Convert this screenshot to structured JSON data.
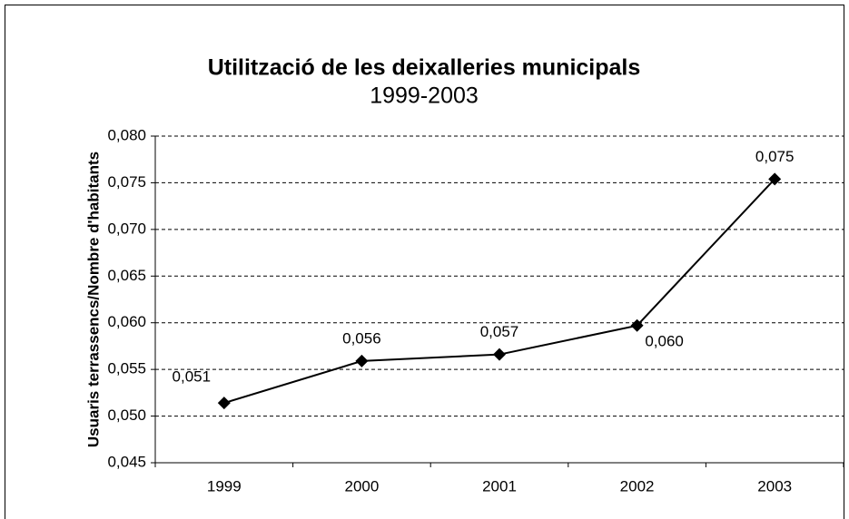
{
  "chart_data": {
    "type": "line",
    "title": "Utilització de les deixalleries municipals",
    "subtitle": "1999-2003",
    "y_label": "Usuaris terrassencs/Nombre d'habitants",
    "categories": [
      "1999",
      "2000",
      "2001",
      "2002",
      "2003"
    ],
    "series": [
      {
        "name": "Usuaris terrassencs/Nombre d'habitants",
        "color": "#000000",
        "values": [
          0.0514,
          0.0559,
          0.0566,
          0.0597,
          0.0754
        ],
        "value_labels": [
          "0,051",
          "0,056",
          "0,057",
          "0,060",
          "0,075"
        ]
      }
    ],
    "ylim": [
      0.045,
      0.08
    ],
    "yticks": [
      {
        "value": 0.045,
        "label": "0,045"
      },
      {
        "value": 0.05,
        "label": "0,050"
      },
      {
        "value": 0.055,
        "label": "0,055"
      },
      {
        "value": 0.06,
        "label": "0,060"
      },
      {
        "value": 0.065,
        "label": "0,065"
      },
      {
        "value": 0.07,
        "label": "0,070"
      },
      {
        "value": 0.075,
        "label": "0,075"
      },
      {
        "value": 0.08,
        "label": "0,080"
      }
    ],
    "grid": true
  }
}
